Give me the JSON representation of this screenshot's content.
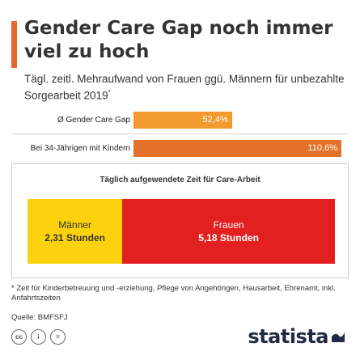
{
  "title": "Gender Care Gap noch immer viel zu hoch",
  "subtitle": "Tägl. zeitl. Mehraufwand von Frauen ggü. Männern für unbezahlte Sorgearbeit 2019",
  "subtitle_marker": "*",
  "colors": {
    "accent": "#e8672a",
    "orange_light": "#f29a2e",
    "orange_dark": "#e5722b",
    "yellow": "#fcd20e",
    "red": "#e1201f",
    "logo": "#202a44"
  },
  "chart_data": [
    {
      "type": "bar",
      "orientation": "horizontal",
      "categories": [
        "Ø Gender Care Gap",
        "Bei 34-Jährigen mit Kindern"
      ],
      "values": [
        52.4,
        110.6
      ],
      "value_labels": [
        "52,4%",
        "110,6%"
      ],
      "unit": "%",
      "xlim": [
        0,
        110.6
      ]
    },
    {
      "type": "bar",
      "orientation": "horizontal",
      "stacked": true,
      "title": "Täglich aufgewendete Zeit für Care-Arbeit",
      "series": [
        {
          "name": "Männer",
          "values": [
            2.31
          ],
          "value_label": "2,31 Stunden"
        },
        {
          "name": "Frauen",
          "values": [
            5.18
          ],
          "value_label": "5,18 Stunden"
        }
      ],
      "unit": "Stunden"
    }
  ],
  "footnote": "* Zeit für Kinderbetreuung und -erziehung, Pflege von Angehörigen, Hausarbeit, Ehrenamt, inkl. Anfahrtszeiten",
  "source": "Quelle: BMFSFJ",
  "license_icons": [
    "cc-icon",
    "attribution-icon",
    "no-derivatives-icon"
  ],
  "license_glyphs": [
    "cc",
    "i",
    "="
  ],
  "brand": "statista"
}
